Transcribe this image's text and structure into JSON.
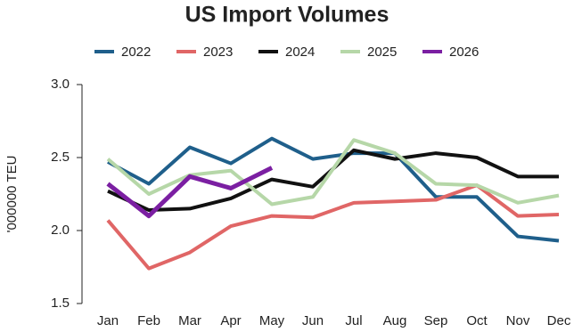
{
  "chart_data": {
    "type": "line",
    "title": "US Import Volumes",
    "y_label": "'000000 TEU",
    "categories": [
      "Jan",
      "Feb",
      "Mar",
      "Apr",
      "May",
      "Jun",
      "Jul",
      "Aug",
      "Sep",
      "Oct",
      "Nov",
      "Dec"
    ],
    "series": [
      {
        "name": "2022",
        "color": "#1f5f8b",
        "values": [
          2.47,
          2.32,
          2.57,
          2.46,
          2.63,
          2.49,
          2.53,
          2.53,
          2.23,
          2.23,
          1.96,
          1.93
        ]
      },
      {
        "name": "2023",
        "color": "#e06666",
        "values": [
          2.07,
          1.74,
          1.85,
          2.03,
          2.1,
          2.09,
          2.19,
          2.2,
          2.21,
          2.31,
          2.1,
          2.11
        ]
      },
      {
        "name": "2024",
        "color": "#111111",
        "values": [
          2.27,
          2.14,
          2.15,
          2.22,
          2.35,
          2.3,
          2.55,
          2.49,
          2.53,
          2.5,
          2.37,
          2.37
        ]
      },
      {
        "name": "2025",
        "color": "#b6d7a8",
        "values": [
          2.49,
          2.25,
          2.38,
          2.41,
          2.18,
          2.23,
          2.62,
          2.53,
          2.32,
          2.31,
          2.19,
          2.24
        ]
      },
      {
        "name": "2026",
        "color": "#7b1fa2",
        "values": [
          2.32,
          2.1,
          2.37,
          2.29,
          2.43,
          null,
          null,
          null,
          null,
          null,
          null,
          null
        ]
      }
    ],
    "ylim": [
      1.5,
      3.0
    ],
    "yticks": [
      1.5,
      {
        "value": 2.0,
        "label": "2.0"
      },
      2.5,
      {
        "value": 3.0,
        "label": "3.0"
      }
    ],
    "grid": false
  }
}
